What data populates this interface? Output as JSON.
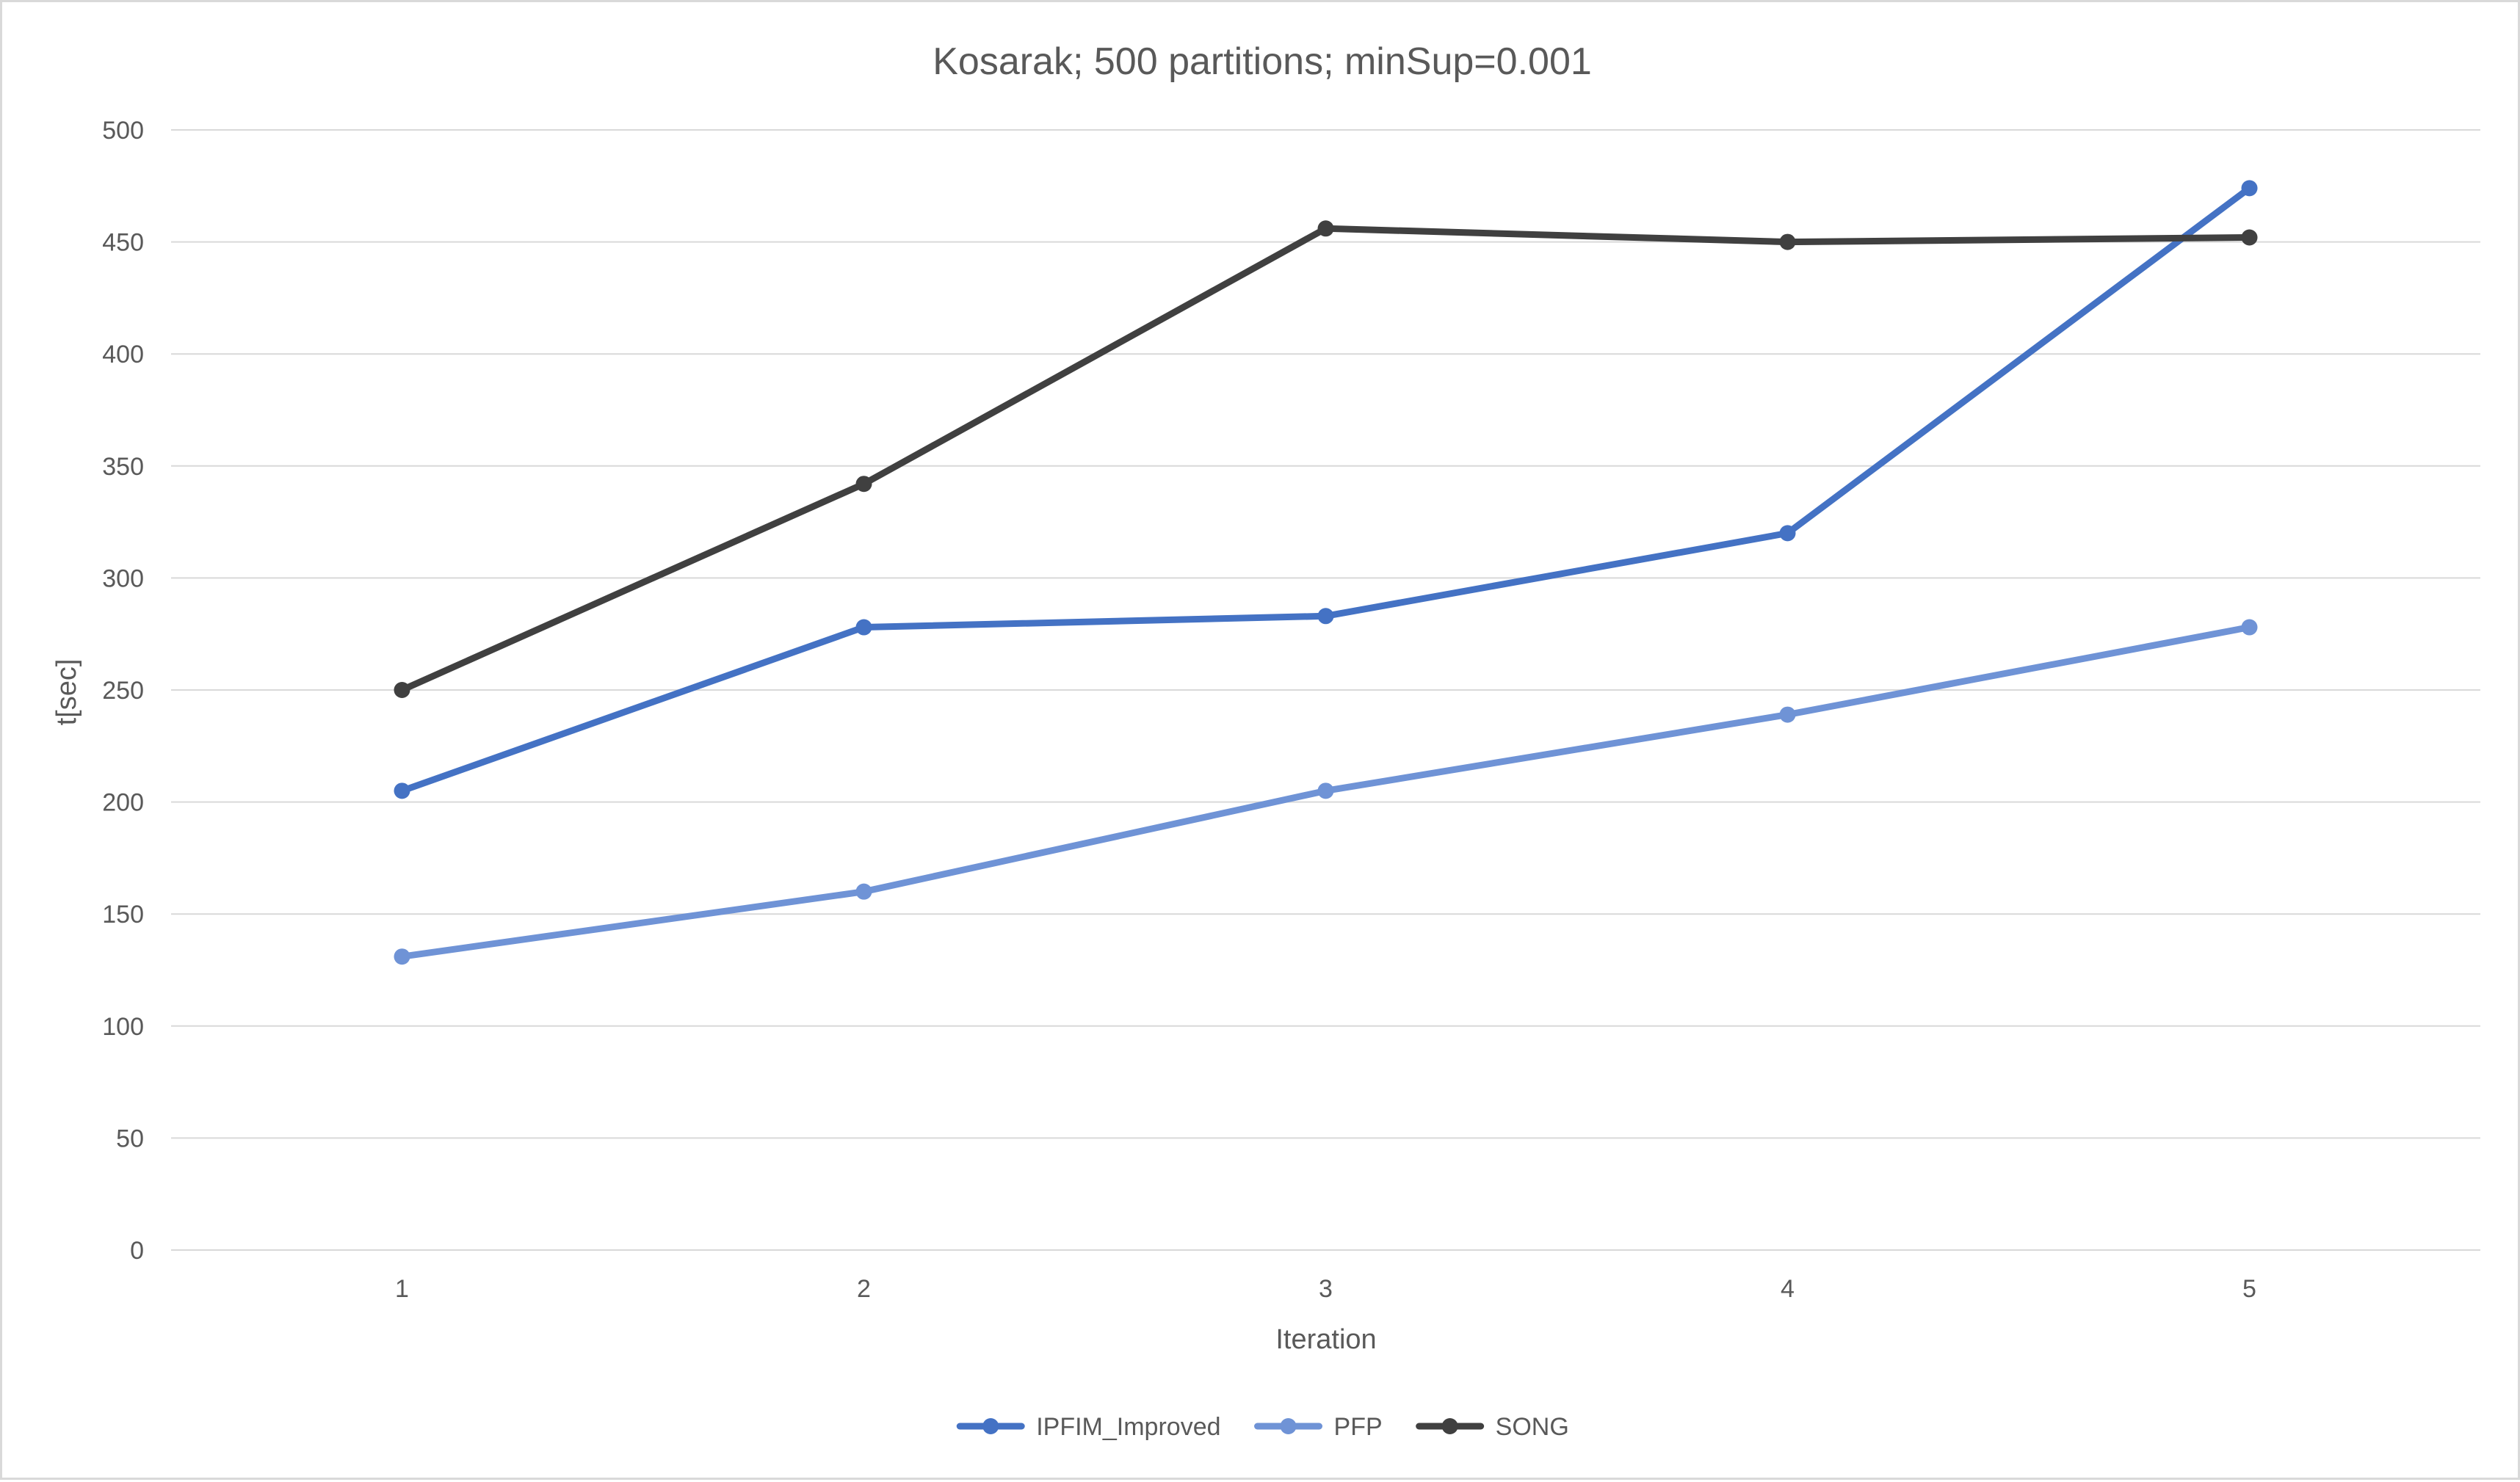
{
  "chart_data": {
    "type": "line",
    "title": "Kosarak; 500 partitions; minSup=0.001",
    "xlabel": "Iteration",
    "ylabel": "t[sec]",
    "categories": [
      "1",
      "2",
      "3",
      "4",
      "5"
    ],
    "ylim": [
      0,
      500
    ],
    "yticks": [
      0,
      50,
      100,
      150,
      200,
      250,
      300,
      350,
      400,
      450,
      500
    ],
    "grid": true,
    "legend_position": "bottom",
    "series": [
      {
        "name": "IPFIM_Improved",
        "color": "#4472c4",
        "values": [
          205,
          278,
          283,
          320,
          474
        ]
      },
      {
        "name": "PFP",
        "color": "#6f93d6",
        "values": [
          131,
          160,
          205,
          239,
          278
        ]
      },
      {
        "name": "SONG",
        "color": "#404040",
        "values": [
          250,
          342,
          456,
          450,
          452
        ]
      }
    ]
  }
}
